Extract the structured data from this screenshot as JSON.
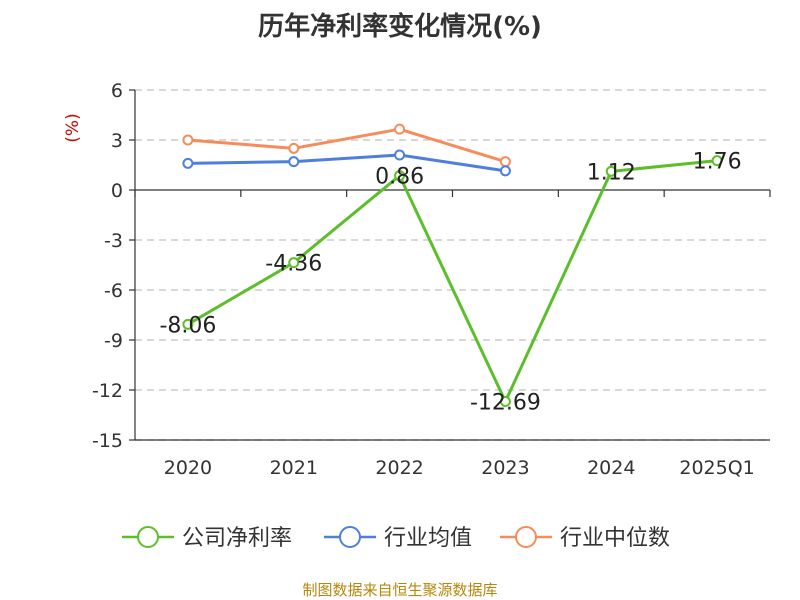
{
  "title": "历年净利率变化情况(%)",
  "source": "制图数据来自恒生聚源数据库",
  "colors": {
    "company": "#5cbf2a",
    "industry_avg": "#4f7fdc",
    "industry_median": "#f78c5a",
    "ylabel": "#cc0000",
    "source": "#b8860b"
  },
  "chart_data": {
    "type": "line",
    "title": "历年净利率变化情况(%)",
    "ylabel": "(%)",
    "xlabel": "",
    "categories": [
      "2020",
      "2021",
      "2022",
      "2023",
      "2024",
      "2025Q1"
    ],
    "ylim": [
      -15,
      6
    ],
    "yticks": [
      6,
      3,
      0,
      -3,
      -6,
      -9,
      -12,
      -15
    ],
    "grid": true,
    "legend_position": "bottom",
    "series": [
      {
        "name": "公司净利率",
        "color_key": "company",
        "values": [
          -8.06,
          -4.36,
          0.86,
          -12.69,
          1.12,
          1.76
        ],
        "labels": [
          "-8.06",
          "-4.36",
          "0.86",
          "-12.69",
          "1.12",
          "1.76"
        ]
      },
      {
        "name": "行业均值",
        "color_key": "industry_avg",
        "values": [
          1.6,
          1.7,
          2.1,
          1.15,
          null,
          null
        ]
      },
      {
        "name": "行业中位数",
        "color_key": "industry_median",
        "values": [
          3.0,
          2.5,
          3.65,
          1.7,
          null,
          null
        ]
      }
    ]
  }
}
